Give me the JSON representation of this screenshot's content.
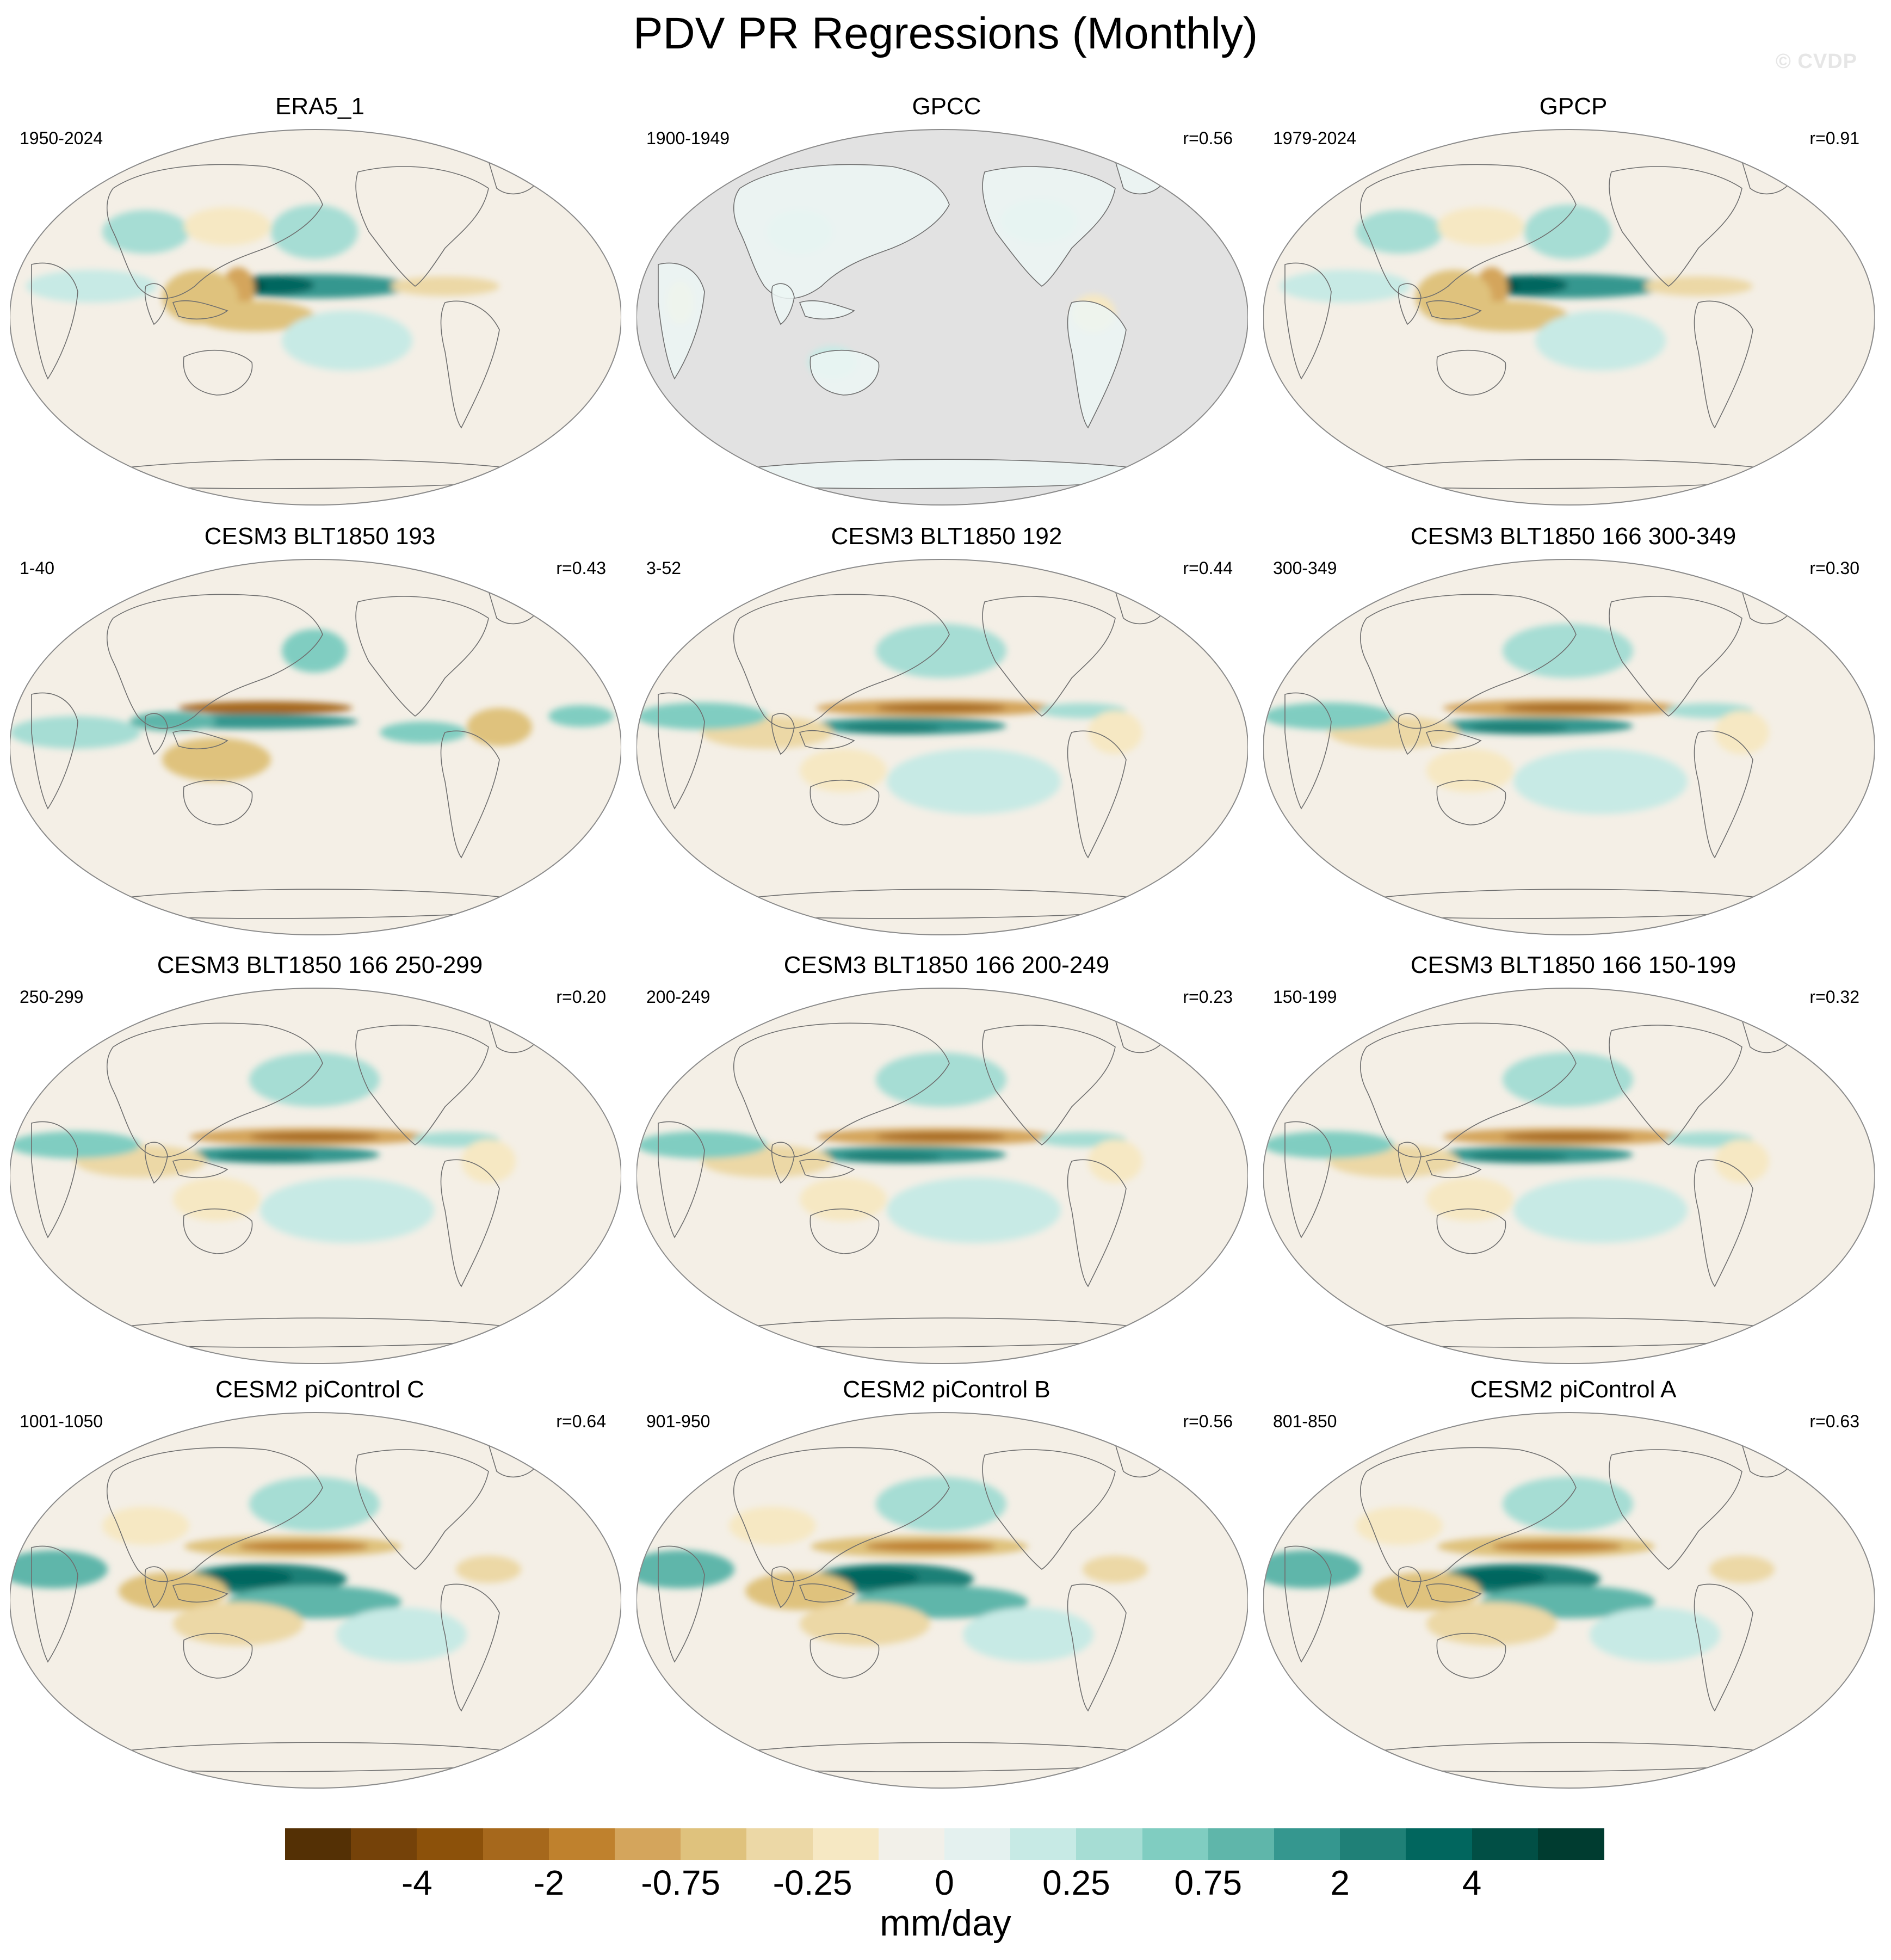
{
  "figure": {
    "title": "PDV PR Regressions (Monthly)",
    "watermark": "© CVDP"
  },
  "panels": [
    {
      "title": "ERA5_1",
      "years": "1950-2024",
      "r": "",
      "pattern": "obs"
    },
    {
      "title": "GPCC",
      "years": "1900-1949",
      "r": "r=0.56",
      "pattern": "land_only"
    },
    {
      "title": "GPCP",
      "years": "1979-2024",
      "r": "r=0.91",
      "pattern": "obs"
    },
    {
      "title": "CESM3 BLT1850 193",
      "years": "1-40",
      "r": "r=0.43",
      "pattern": "noisy"
    },
    {
      "title": "CESM3 BLT1850 192",
      "years": "3-52",
      "r": "r=0.44",
      "pattern": "dipole"
    },
    {
      "title": "CESM3 BLT1850 166 300-349",
      "years": "300-349",
      "r": "r=0.30",
      "pattern": "dipole"
    },
    {
      "title": "CESM3 BLT1850 166 250-299",
      "years": "250-299",
      "r": "r=0.20",
      "pattern": "dipole"
    },
    {
      "title": "CESM3 BLT1850 166 200-249",
      "years": "200-249",
      "r": "r=0.23",
      "pattern": "dipole"
    },
    {
      "title": "CESM3 BLT1850 166 150-199",
      "years": "150-199",
      "r": "r=0.32",
      "pattern": "dipole"
    },
    {
      "title": "CESM2 piControl C",
      "years": "1001-1050",
      "r": "r=0.64",
      "pattern": "model"
    },
    {
      "title": "CESM2 piControl B",
      "years": "901-950",
      "r": "r=0.56",
      "pattern": "model"
    },
    {
      "title": "CESM2 piControl A",
      "years": "801-850",
      "r": "r=0.63",
      "pattern": "model"
    }
  ],
  "colorbar": {
    "units": "mm/day",
    "colors": [
      "#543005",
      "#754209",
      "#8c510a",
      "#a6681c",
      "#bf812d",
      "#d4a55c",
      "#dfc27d",
      "#ecd8a6",
      "#f6e8c3",
      "#f2f0e9",
      "#e4f1ef",
      "#c7eae5",
      "#a6ddd4",
      "#80cdc1",
      "#5fb6aa",
      "#35978f",
      "#1f8077",
      "#01665e",
      "#014f45",
      "#003c30"
    ],
    "labels": [
      {
        "text": "-4",
        "boundary": 2
      },
      {
        "text": "-2",
        "boundary": 4
      },
      {
        "text": "-0.75",
        "boundary": 6
      },
      {
        "text": "-0.25",
        "boundary": 8
      },
      {
        "text": "0",
        "boundary": 10
      },
      {
        "text": "0.25",
        "boundary": 12
      },
      {
        "text": "0.75",
        "boundary": 14
      },
      {
        "text": "2",
        "boundary": 16
      },
      {
        "text": "4",
        "boundary": 18
      }
    ]
  }
}
